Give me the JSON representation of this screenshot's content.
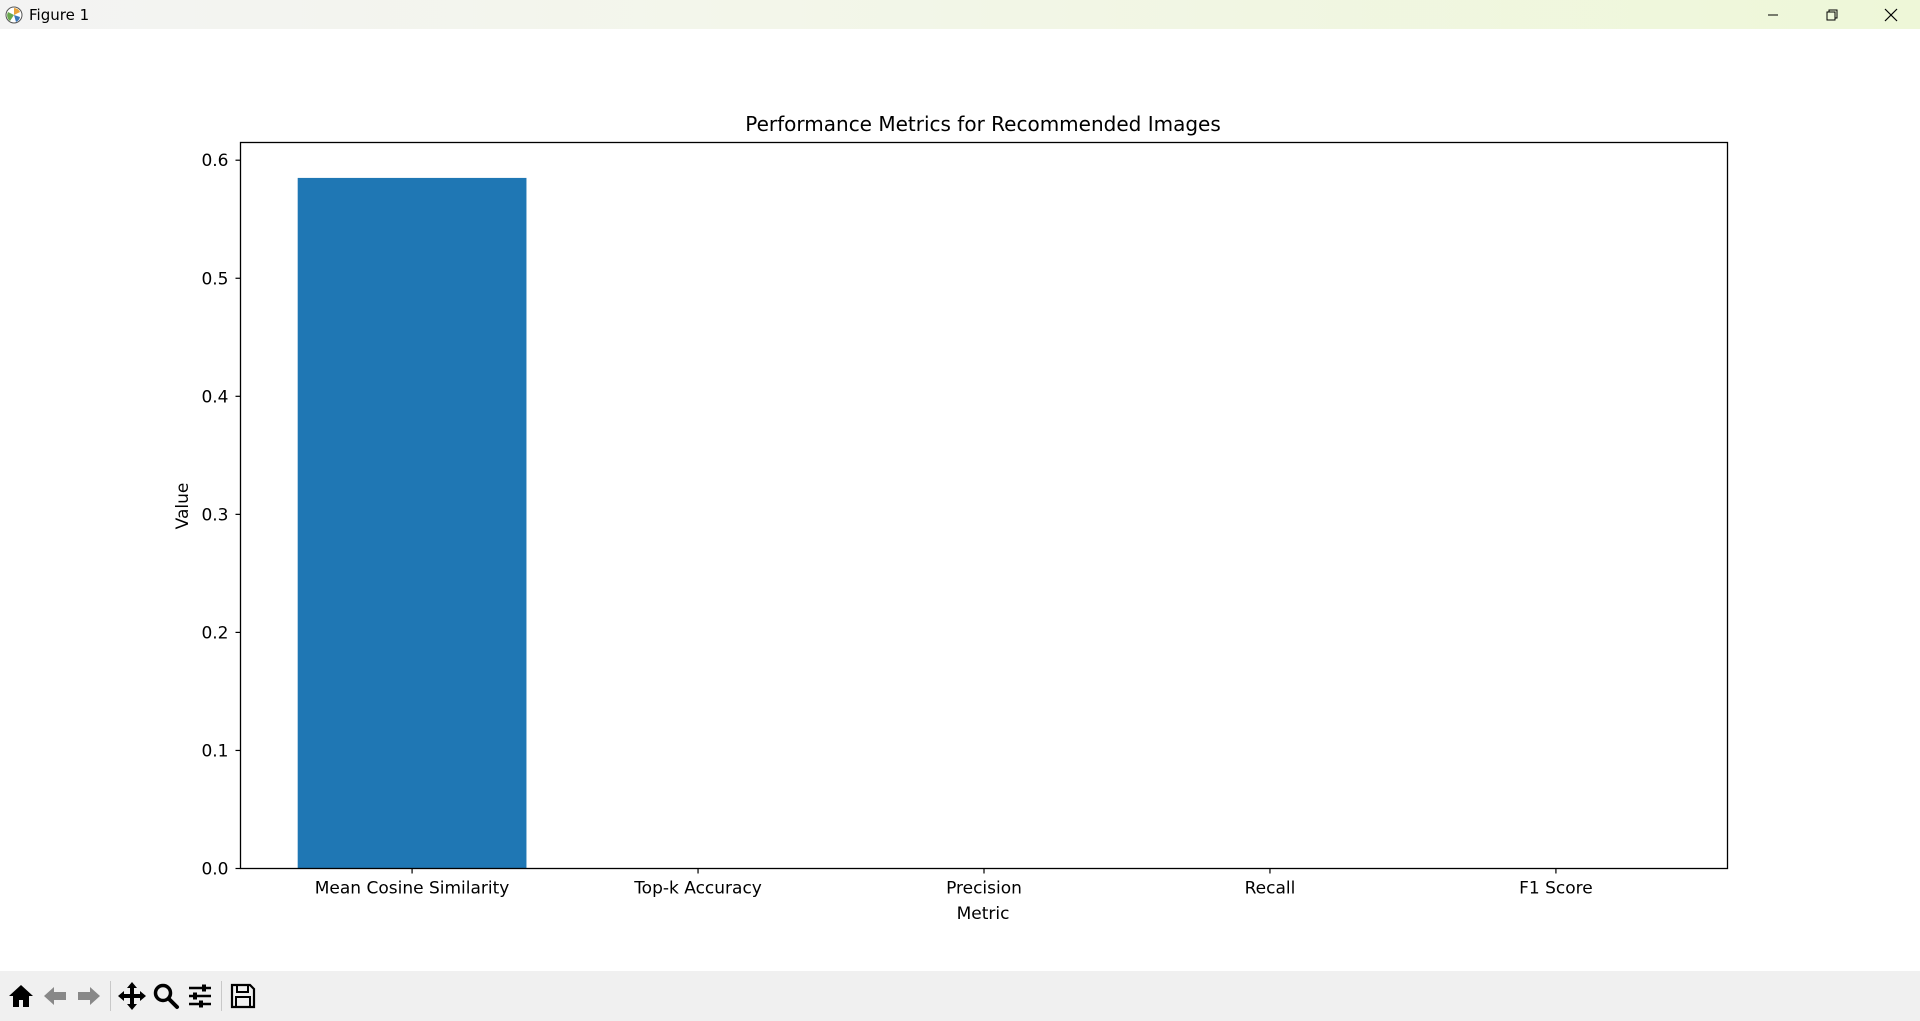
{
  "window": {
    "title": "Figure 1"
  },
  "toolbar": {
    "buttons": [
      {
        "name": "home-button",
        "icon": "home-icon"
      },
      {
        "name": "back-button",
        "icon": "arrow-left-icon"
      },
      {
        "name": "forward-button",
        "icon": "arrow-right-icon"
      },
      {
        "name": "pan-button",
        "icon": "move-icon"
      },
      {
        "name": "zoom-button",
        "icon": "magnifier-icon"
      },
      {
        "name": "configure-subplots-button",
        "icon": "sliders-icon"
      },
      {
        "name": "save-button",
        "icon": "floppy-disk-icon"
      }
    ]
  },
  "chart_data": {
    "type": "bar",
    "title": "Performance Metrics for Recommended Images",
    "xlabel": "Metric",
    "ylabel": "Value",
    "categories": [
      "Mean Cosine Similarity",
      "Top-k Accuracy",
      "Precision",
      "Recall",
      "F1 Score"
    ],
    "values": [
      0.585,
      0.0,
      0.0,
      0.0,
      0.0
    ],
    "ylim": [
      0.0,
      0.615
    ],
    "yticks": [
      0.0,
      0.1,
      0.2,
      0.3,
      0.4,
      0.5,
      0.6
    ],
    "ytick_labels": [
      "0.0",
      "0.1",
      "0.2",
      "0.3",
      "0.4",
      "0.5",
      "0.6"
    ],
    "bar_color": "#1f77b4",
    "grid": false,
    "legend": "none"
  }
}
